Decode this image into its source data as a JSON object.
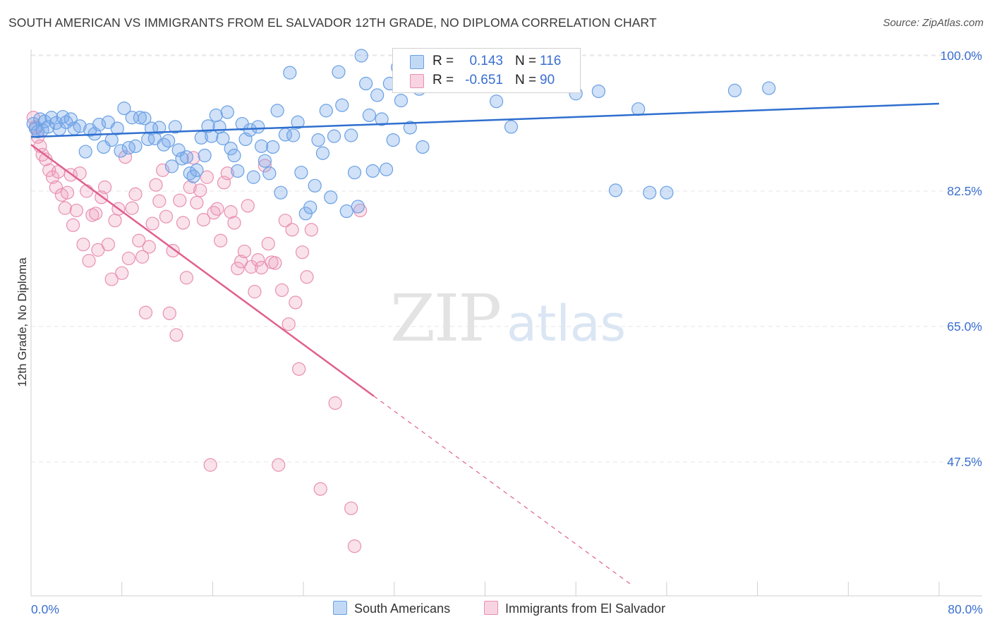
{
  "title": "SOUTH AMERICAN VS IMMIGRANTS FROM EL SALVADOR 12TH GRADE, NO DIPLOMA CORRELATION CHART",
  "source": "Source: ZipAtlas.com",
  "watermark": {
    "zip": "ZIP",
    "atlas": "atlas"
  },
  "colors": {
    "blue": "#6aa0e4",
    "blue_fill": "rgba(120,170,235,0.35)",
    "blue_line": "#2f6fcf",
    "pink": "#e890b0",
    "pink_fill": "rgba(240,160,190,0.30)",
    "pink_line": "#e0608e",
    "tick_text": "#3a6fd0",
    "grid": "#e6e6e6"
  },
  "legend": {
    "rows": [
      {
        "r_label": "R =",
        "r_value": "0.143",
        "n_label": "N =",
        "n_value": "116"
      },
      {
        "r_label": "R =",
        "r_value": "-0.651",
        "n_label": "N =",
        "n_value": "90"
      }
    ]
  },
  "chart_data": {
    "type": "scatter",
    "title": "SOUTH AMERICAN VS IMMIGRANTS FROM EL SALVADOR 12TH GRADE, NO DIPLOMA CORRELATION CHART",
    "xlabel": "",
    "ylabel": "12th Grade, No Diploma",
    "xlim": [
      0,
      80
    ],
    "ylim": [
      32,
      102
    ],
    "x_tick_labels": [
      "0.0%",
      "80.0%"
    ],
    "y_ticks": [
      47.5,
      65.0,
      82.5,
      100.0
    ],
    "y_tick_labels": [
      "47.5%",
      "65.0%",
      "82.5%",
      "100.0%"
    ],
    "grid": true,
    "legend_position": "bottom",
    "series": [
      {
        "name": "South Americans",
        "color": "#6aa0e4",
        "trend": {
          "x": [
            0,
            80
          ],
          "y": [
            89.5,
            93.8
          ]
        },
        "points": [
          [
            0.2,
            91.2
          ],
          [
            0.4,
            90.6
          ],
          [
            0.6,
            90.2
          ],
          [
            0.8,
            91.8
          ],
          [
            1.0,
            90.4
          ],
          [
            1.2,
            91.5
          ],
          [
            1.5,
            90.8
          ],
          [
            1.8,
            92.0
          ],
          [
            2.2,
            91.3
          ],
          [
            2.5,
            90.5
          ],
          [
            2.8,
            92.1
          ],
          [
            3.1,
            91.4
          ],
          [
            3.5,
            91.8
          ],
          [
            3.8,
            90.6
          ],
          [
            4.3,
            90.9
          ],
          [
            4.8,
            87.6
          ],
          [
            5.2,
            90.4
          ],
          [
            5.6,
            89.9
          ],
          [
            6.0,
            91.1
          ],
          [
            6.4,
            88.2
          ],
          [
            6.8,
            91.4
          ],
          [
            7.1,
            89.1
          ],
          [
            7.6,
            90.6
          ],
          [
            7.9,
            87.7
          ],
          [
            8.2,
            93.2
          ],
          [
            8.6,
            88.1
          ],
          [
            8.9,
            92.0
          ],
          [
            9.2,
            88.3
          ],
          [
            9.6,
            92.0
          ],
          [
            10.0,
            91.9
          ],
          [
            10.3,
            89.2
          ],
          [
            10.6,
            90.6
          ],
          [
            10.9,
            89.3
          ],
          [
            11.3,
            90.7
          ],
          [
            11.7,
            88.5
          ],
          [
            12.1,
            89.0
          ],
          [
            12.4,
            85.7
          ],
          [
            12.7,
            90.8
          ],
          [
            13.0,
            87.8
          ],
          [
            13.3,
            86.7
          ],
          [
            13.7,
            86.9
          ],
          [
            14.0,
            84.8
          ],
          [
            14.3,
            84.4
          ],
          [
            14.6,
            85.2
          ],
          [
            15.0,
            89.4
          ],
          [
            15.3,
            87.1
          ],
          [
            15.6,
            90.9
          ],
          [
            15.9,
            89.6
          ],
          [
            16.3,
            92.3
          ],
          [
            16.6,
            90.8
          ],
          [
            16.9,
            89.3
          ],
          [
            17.3,
            92.7
          ],
          [
            17.6,
            88.0
          ],
          [
            17.9,
            87.1
          ],
          [
            18.2,
            85.1
          ],
          [
            18.6,
            91.2
          ],
          [
            18.9,
            89.2
          ],
          [
            19.3,
            90.4
          ],
          [
            19.6,
            84.3
          ],
          [
            20.0,
            90.8
          ],
          [
            20.3,
            88.3
          ],
          [
            20.6,
            86.4
          ],
          [
            21.0,
            84.8
          ],
          [
            21.3,
            88.2
          ],
          [
            21.7,
            92.9
          ],
          [
            22.0,
            82.3
          ],
          [
            22.4,
            89.8
          ],
          [
            22.8,
            97.8
          ],
          [
            23.1,
            89.7
          ],
          [
            23.5,
            91.4
          ],
          [
            23.8,
            84.9
          ],
          [
            24.2,
            79.6
          ],
          [
            24.6,
            80.4
          ],
          [
            25.0,
            83.2
          ],
          [
            25.3,
            89.1
          ],
          [
            25.7,
            87.4
          ],
          [
            26.0,
            92.9
          ],
          [
            26.4,
            81.7
          ],
          [
            26.7,
            89.6
          ],
          [
            27.1,
            97.9
          ],
          [
            27.4,
            93.6
          ],
          [
            27.8,
            79.9
          ],
          [
            28.2,
            89.7
          ],
          [
            28.5,
            84.9
          ],
          [
            28.8,
            80.5
          ],
          [
            29.1,
            100.0
          ],
          [
            29.5,
            96.4
          ],
          [
            29.8,
            92.3
          ],
          [
            30.1,
            85.1
          ],
          [
            30.5,
            94.9
          ],
          [
            30.9,
            91.8
          ],
          [
            31.3,
            85.3
          ],
          [
            31.6,
            96.4
          ],
          [
            31.9,
            89.1
          ],
          [
            32.3,
            98.5
          ],
          [
            32.6,
            94.2
          ],
          [
            33.0,
            99.6
          ],
          [
            33.4,
            90.7
          ],
          [
            33.8,
            97.7
          ],
          [
            34.2,
            95.7
          ],
          [
            34.5,
            88.2
          ],
          [
            35.0,
            98.2
          ],
          [
            35.5,
            99.5
          ],
          [
            36.0,
            98.7
          ],
          [
            39.5,
            98.6
          ],
          [
            41.0,
            94.1
          ],
          [
            42.3,
            90.8
          ],
          [
            48.0,
            95.1
          ],
          [
            50.0,
            95.4
          ],
          [
            51.5,
            82.6
          ],
          [
            53.5,
            93.1
          ],
          [
            54.5,
            82.3
          ],
          [
            56.0,
            82.3
          ],
          [
            62.0,
            95.5
          ],
          [
            65.0,
            95.8
          ]
        ]
      },
      {
        "name": "Immigrants from El Salvador",
        "color": "#e890b0",
        "trend": {
          "x": [
            0,
            30.2
          ],
          "y": [
            88.5,
            56.0
          ]
        },
        "trend_dashed": {
          "x": [
            30.2,
            53
          ],
          "y": [
            56.0,
            31.5
          ]
        },
        "points": [
          [
            0.2,
            92.0
          ],
          [
            0.4,
            90.8
          ],
          [
            0.6,
            89.5
          ],
          [
            0.8,
            88.3
          ],
          [
            1.0,
            87.2
          ],
          [
            1.3,
            86.6
          ],
          [
            1.6,
            85.2
          ],
          [
            1.9,
            84.3
          ],
          [
            2.2,
            83.0
          ],
          [
            2.4,
            85.0
          ],
          [
            2.7,
            82.0
          ],
          [
            3.0,
            80.3
          ],
          [
            3.2,
            82.3
          ],
          [
            3.5,
            84.6
          ],
          [
            3.7,
            78.1
          ],
          [
            4.0,
            80.0
          ],
          [
            4.3,
            84.8
          ],
          [
            4.6,
            75.6
          ],
          [
            4.9,
            82.5
          ],
          [
            5.1,
            73.5
          ],
          [
            5.4,
            79.4
          ],
          [
            5.7,
            79.6
          ],
          [
            5.9,
            74.9
          ],
          [
            6.2,
            81.7
          ],
          [
            6.5,
            83.0
          ],
          [
            6.8,
            75.6
          ],
          [
            7.1,
            71.1
          ],
          [
            7.4,
            78.7
          ],
          [
            7.7,
            80.2
          ],
          [
            8.0,
            71.9
          ],
          [
            8.3,
            86.9
          ],
          [
            8.6,
            73.8
          ],
          [
            8.9,
            80.3
          ],
          [
            9.2,
            82.1
          ],
          [
            9.5,
            76.1
          ],
          [
            9.8,
            74.0
          ],
          [
            10.1,
            66.8
          ],
          [
            10.4,
            75.3
          ],
          [
            10.7,
            78.3
          ],
          [
            11.0,
            83.3
          ],
          [
            11.3,
            81.2
          ],
          [
            11.6,
            85.2
          ],
          [
            11.9,
            79.2
          ],
          [
            12.2,
            66.7
          ],
          [
            12.5,
            74.8
          ],
          [
            12.8,
            63.9
          ],
          [
            13.1,
            81.3
          ],
          [
            13.4,
            78.4
          ],
          [
            13.7,
            71.3
          ],
          [
            14.0,
            83.0
          ],
          [
            14.3,
            86.8
          ],
          [
            14.6,
            81.0
          ],
          [
            14.9,
            82.6
          ],
          [
            15.2,
            78.8
          ],
          [
            15.5,
            84.3
          ],
          [
            15.8,
            47.1
          ],
          [
            16.1,
            79.7
          ],
          [
            16.4,
            80.2
          ],
          [
            16.7,
            76.1
          ],
          [
            17.0,
            83.6
          ],
          [
            17.3,
            84.8
          ],
          [
            17.6,
            79.8
          ],
          [
            17.9,
            78.4
          ],
          [
            18.2,
            72.5
          ],
          [
            18.5,
            73.4
          ],
          [
            18.8,
            74.7
          ],
          [
            19.1,
            80.6
          ],
          [
            19.4,
            72.7
          ],
          [
            19.7,
            69.5
          ],
          [
            20.0,
            73.6
          ],
          [
            20.3,
            72.6
          ],
          [
            20.6,
            85.8
          ],
          [
            20.9,
            75.7
          ],
          [
            21.2,
            73.3
          ],
          [
            21.5,
            73.2
          ],
          [
            21.8,
            47.1
          ],
          [
            22.1,
            69.7
          ],
          [
            22.4,
            78.7
          ],
          [
            22.7,
            65.3
          ],
          [
            23.0,
            77.5
          ],
          [
            23.3,
            68.1
          ],
          [
            23.6,
            59.5
          ],
          [
            23.9,
            74.6
          ],
          [
            24.3,
            71.4
          ],
          [
            24.7,
            77.5
          ],
          [
            25.5,
            44.0
          ],
          [
            26.8,
            55.1
          ],
          [
            28.2,
            41.5
          ],
          [
            28.5,
            36.6
          ],
          [
            29.0,
            80.0
          ]
        ]
      }
    ]
  },
  "bottom_legend": [
    {
      "label": "South Americans"
    },
    {
      "label": "Immigrants from El Salvador"
    }
  ]
}
